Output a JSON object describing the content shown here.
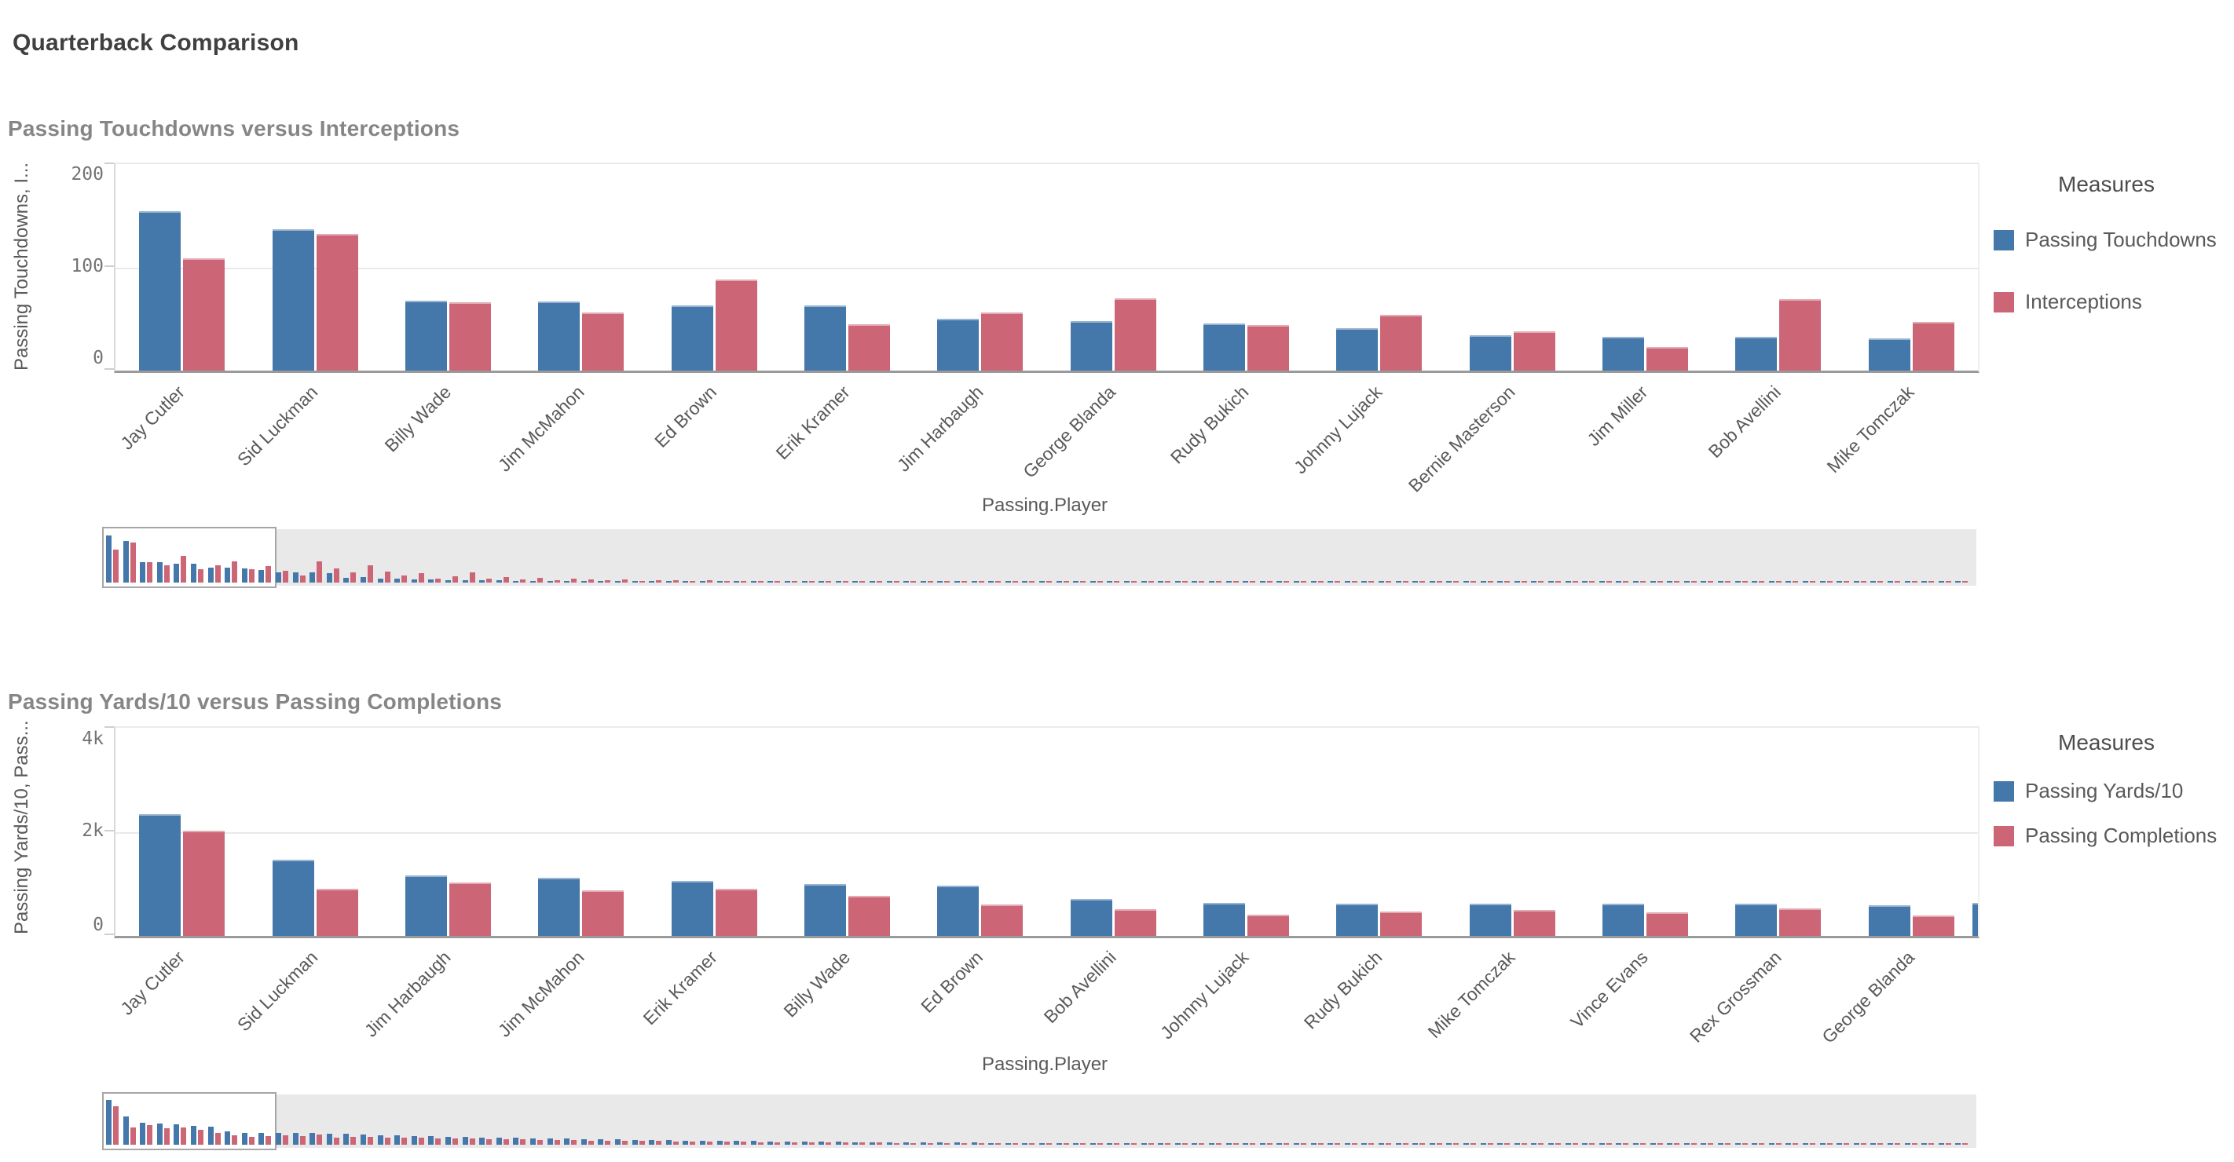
{
  "page": {
    "title": "Quarterback Comparison"
  },
  "colors": {
    "blue": "#4477aa",
    "red": "#cc6677",
    "grid": "#e9e9e9",
    "axis_baseline": "#9a9a9a"
  },
  "chart_data": [
    {
      "type": "bar",
      "title": "Passing Touchdowns versus Interceptions",
      "ylabel": "Passing Touchdowns, I...",
      "xlabel": "Passing.Player",
      "legend_title": "Measures",
      "legend_position": "right",
      "grid": true,
      "ylim": [
        0,
        200
      ],
      "yticks": [
        "0",
        "100",
        "200"
      ],
      "categories": [
        "Jay Cutler",
        "Sid Luckman",
        "Billy Wade",
        "Jim McMahon",
        "Ed Brown",
        "Erik Kramer",
        "Jim Harbaugh",
        "George Blanda",
        "Rudy Bukich",
        "Johnny Lujack",
        "Bernie Masterson",
        "Jim Miller",
        "Bob Avellini",
        "Mike Tomczak"
      ],
      "series": [
        {
          "name": "Passing Touchdowns",
          "color": "#4477aa",
          "values": [
            154,
            137,
            68,
            67,
            63,
            63,
            50,
            48,
            46,
            41,
            34,
            33,
            33,
            31
          ]
        },
        {
          "name": "Interceptions",
          "color": "#cc6677",
          "values": [
            109,
            132,
            66,
            56,
            88,
            45,
            56,
            70,
            44,
            54,
            38,
            23,
            69,
            47
          ]
        }
      ],
      "partial_next_bar": null,
      "scrollbar_preview": {
        "blue": [
          154,
          137,
          68,
          67,
          63,
          63,
          50,
          48,
          46,
          41,
          34,
          33,
          33,
          31,
          16,
          17,
          14,
          13,
          11,
          10,
          9,
          8,
          8,
          7,
          6,
          6,
          5,
          5,
          4,
          4,
          3,
          3,
          3,
          2,
          2,
          2,
          2,
          1,
          1,
          1,
          1,
          1,
          1,
          1,
          1,
          0,
          1,
          0,
          0,
          1,
          0,
          0,
          0,
          1,
          0,
          0,
          0,
          0,
          0,
          0,
          0,
          1,
          0,
          0,
          0,
          0,
          1,
          0,
          0,
          0,
          0,
          0,
          0,
          1,
          0,
          0,
          0,
          0,
          0,
          0,
          0,
          1,
          0,
          0,
          0,
          0,
          0,
          0,
          0,
          0,
          1,
          0,
          0,
          0,
          0,
          0,
          0,
          0,
          0,
          0,
          1,
          0,
          0,
          0,
          0,
          0,
          0,
          0,
          0,
          0
        ],
        "red": [
          109,
          132,
          66,
          56,
          88,
          45,
          56,
          70,
          44,
          54,
          38,
          23,
          69,
          47,
          33,
          57,
          35,
          22,
          30,
          14,
          21,
          34,
          12,
          17,
          10,
          15,
          9,
          13,
          10,
          7,
          11,
          6,
          9,
          7,
          5,
          8,
          4,
          6,
          3,
          5,
          2,
          4,
          2,
          3,
          2,
          2,
          1,
          2,
          1,
          1,
          2,
          1,
          1,
          1,
          1,
          1,
          2,
          1,
          1,
          1,
          1,
          1,
          1,
          1,
          1,
          1,
          1,
          1,
          1,
          1,
          1,
          1,
          1,
          1,
          1,
          1,
          1,
          1,
          1,
          1,
          1,
          1,
          1,
          1,
          1,
          1,
          1,
          1,
          1,
          1,
          1,
          1,
          1,
          1,
          1,
          1,
          1,
          1,
          1,
          1,
          1,
          1,
          1,
          1,
          1,
          1,
          1,
          1,
          1,
          1
        ]
      }
    },
    {
      "type": "bar",
      "title": "Passing Yards/10 versus Passing Completions",
      "ylabel": "Passing Yards/10, Pass...",
      "xlabel": "Passing.Player",
      "legend_title": "Measures",
      "legend_position": "right",
      "grid": true,
      "ylim": [
        0,
        4000
      ],
      "yticks": [
        "0",
        "2k",
        "4k"
      ],
      "categories": [
        "Jay Cutler",
        "Sid Luckman",
        "Jim Harbaugh",
        "Jim McMahon",
        "Erik Kramer",
        "Billy Wade",
        "Ed Brown",
        "Bob Avellini",
        "Johnny Lujack",
        "Rudy Bukich",
        "Mike Tomczak",
        "Vince Evans",
        "Rex Grossman",
        "George Blanda"
      ],
      "series": [
        {
          "name": "Passing Yards/10",
          "color": "#4477aa",
          "values": [
            2344,
            1469,
            1157,
            1120,
            1058,
            996,
            970,
            711,
            630,
            625,
            625,
            617,
            616,
            594
          ]
        },
        {
          "name": "Passing Completions",
          "color": "#cc6677",
          "values": [
            2020,
            904,
            1023,
            874,
            913,
            767,
            607,
            506,
            404,
            474,
            493,
            456,
            522,
            391
          ]
        }
      ],
      "partial_next_bar": 630,
      "scrollbar_preview": {
        "blue": [
          2344,
          1469,
          1157,
          1120,
          1058,
          996,
          970,
          711,
          630,
          625,
          625,
          617,
          616,
          594,
          560,
          535,
          512,
          490,
          468,
          448,
          428,
          409,
          391,
          374,
          357,
          341,
          326,
          312,
          298,
          285,
          272,
          260,
          249,
          238,
          227,
          217,
          207,
          198,
          189,
          181,
          173,
          165,
          158,
          151,
          144,
          138,
          132,
          126,
          120,
          115,
          110,
          105,
          100,
          96,
          92,
          88,
          84,
          80,
          76,
          73,
          70,
          67,
          64,
          61,
          58,
          56,
          53,
          51,
          48,
          46,
          44,
          42,
          40,
          38,
          37,
          35,
          33,
          32,
          30,
          29,
          28,
          26,
          25,
          24,
          23,
          22,
          21,
          20,
          19,
          18,
          17,
          17,
          16,
          15,
          14,
          14,
          13,
          12,
          12,
          11,
          11,
          10,
          10,
          9,
          9,
          8,
          8,
          8,
          7,
          7
        ],
        "red": [
          2020,
          904,
          1023,
          874,
          913,
          767,
          607,
          506,
          404,
          474,
          493,
          456,
          522,
          391,
          426,
          407,
          389,
          372,
          356,
          340,
          325,
          311,
          297,
          284,
          271,
          259,
          248,
          237,
          226,
          217,
          207,
          198,
          189,
          181,
          173,
          165,
          158,
          151,
          144,
          138,
          132,
          126,
          120,
          115,
          110,
          105,
          100,
          96,
          92,
          87,
          84,
          80,
          76,
          73,
          70,
          67,
          64,
          61,
          58,
          55,
          53,
          51,
          49,
          46,
          44,
          43,
          40,
          39,
          36,
          35,
          34,
          32,
          30,
          29,
          28,
          27,
          26,
          25,
          23,
          22,
          21,
          20,
          19,
          18,
          17,
          16,
          16,
          15,
          14,
          13,
          13,
          12,
          11,
          11,
          10,
          10,
          9,
          9,
          8,
          8,
          8,
          7,
          7,
          7,
          6,
          6,
          6,
          6,
          5,
          5
        ]
      }
    }
  ]
}
